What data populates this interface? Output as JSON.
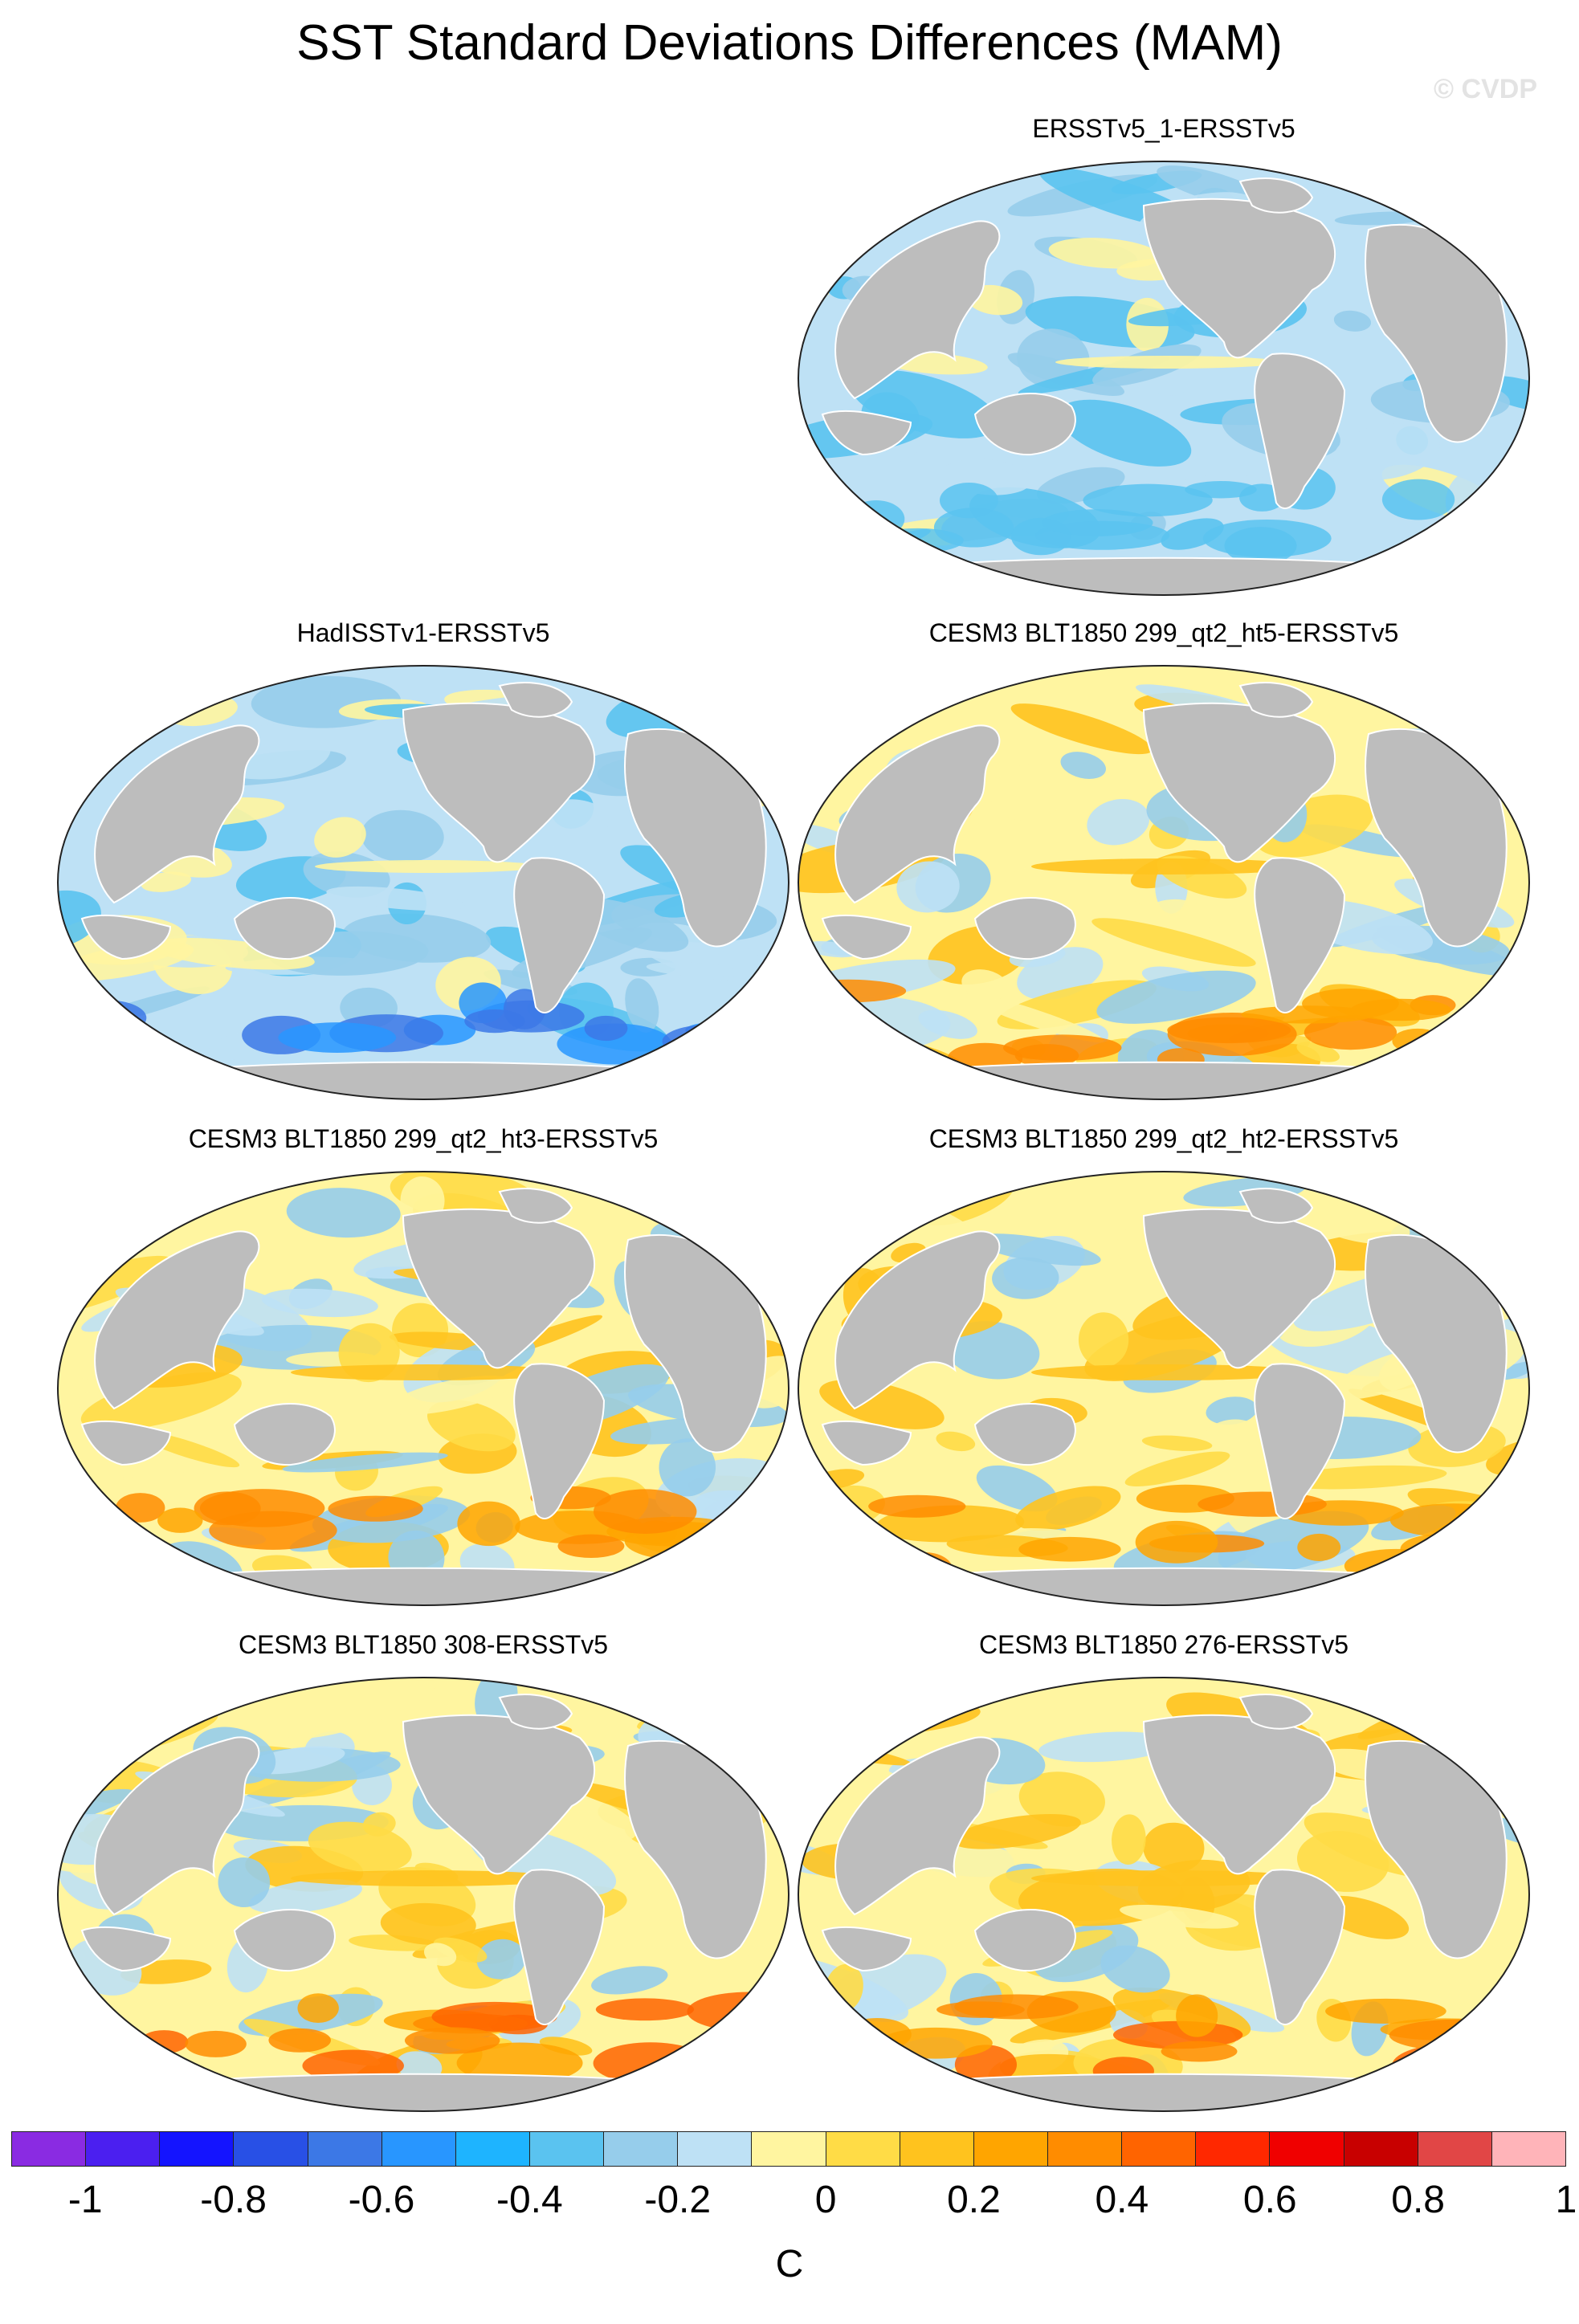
{
  "figure": {
    "title": "SST Standard Deviations Differences (MAM)",
    "watermark": "© CVDP"
  },
  "panels": [
    {
      "title": "ERSSTv5_1-ERSSTv5",
      "slot": "top-right",
      "pattern": "cool"
    },
    {
      "title": "HadISSTv1-ERSSTv5",
      "slot": "row2-left",
      "pattern": "cooler"
    },
    {
      "title": "CESM3 BLT1850 299_qt2_ht5-ERSSTv5",
      "slot": "row2-right",
      "pattern": "warm"
    },
    {
      "title": "CESM3 BLT1850 299_qt2_ht3-ERSSTv5",
      "slot": "row3-left",
      "pattern": "warm"
    },
    {
      "title": "CESM3 BLT1850 299_qt2_ht2-ERSSTv5",
      "slot": "row3-right",
      "pattern": "warm"
    },
    {
      "title": "CESM3 BLT1850 308-ERSSTv5",
      "slot": "row4-left",
      "pattern": "warmer"
    },
    {
      "title": "CESM3 BLT1850 276-ERSSTv5",
      "slot": "row4-right",
      "pattern": "warmer"
    }
  ],
  "colorbar": {
    "units": "C",
    "tick_labels": [
      "-1",
      "-0.8",
      "-0.6",
      "-0.4",
      "-0.2",
      "0",
      "0.2",
      "0.4",
      "0.6",
      "0.8",
      "1"
    ],
    "colors": [
      "#8a2be2",
      "#4b1ff0",
      "#1414ff",
      "#2850e6",
      "#3c78e6",
      "#2896ff",
      "#1eb4ff",
      "#5ac3f0",
      "#96cdeb",
      "#bee1f5",
      "#fff5a0",
      "#ffdc46",
      "#ffc31e",
      "#ffa500",
      "#ff8c00",
      "#ff6400",
      "#ff2800",
      "#f00000",
      "#c80000",
      "#e14646",
      "#ffb4b9"
    ]
  }
}
